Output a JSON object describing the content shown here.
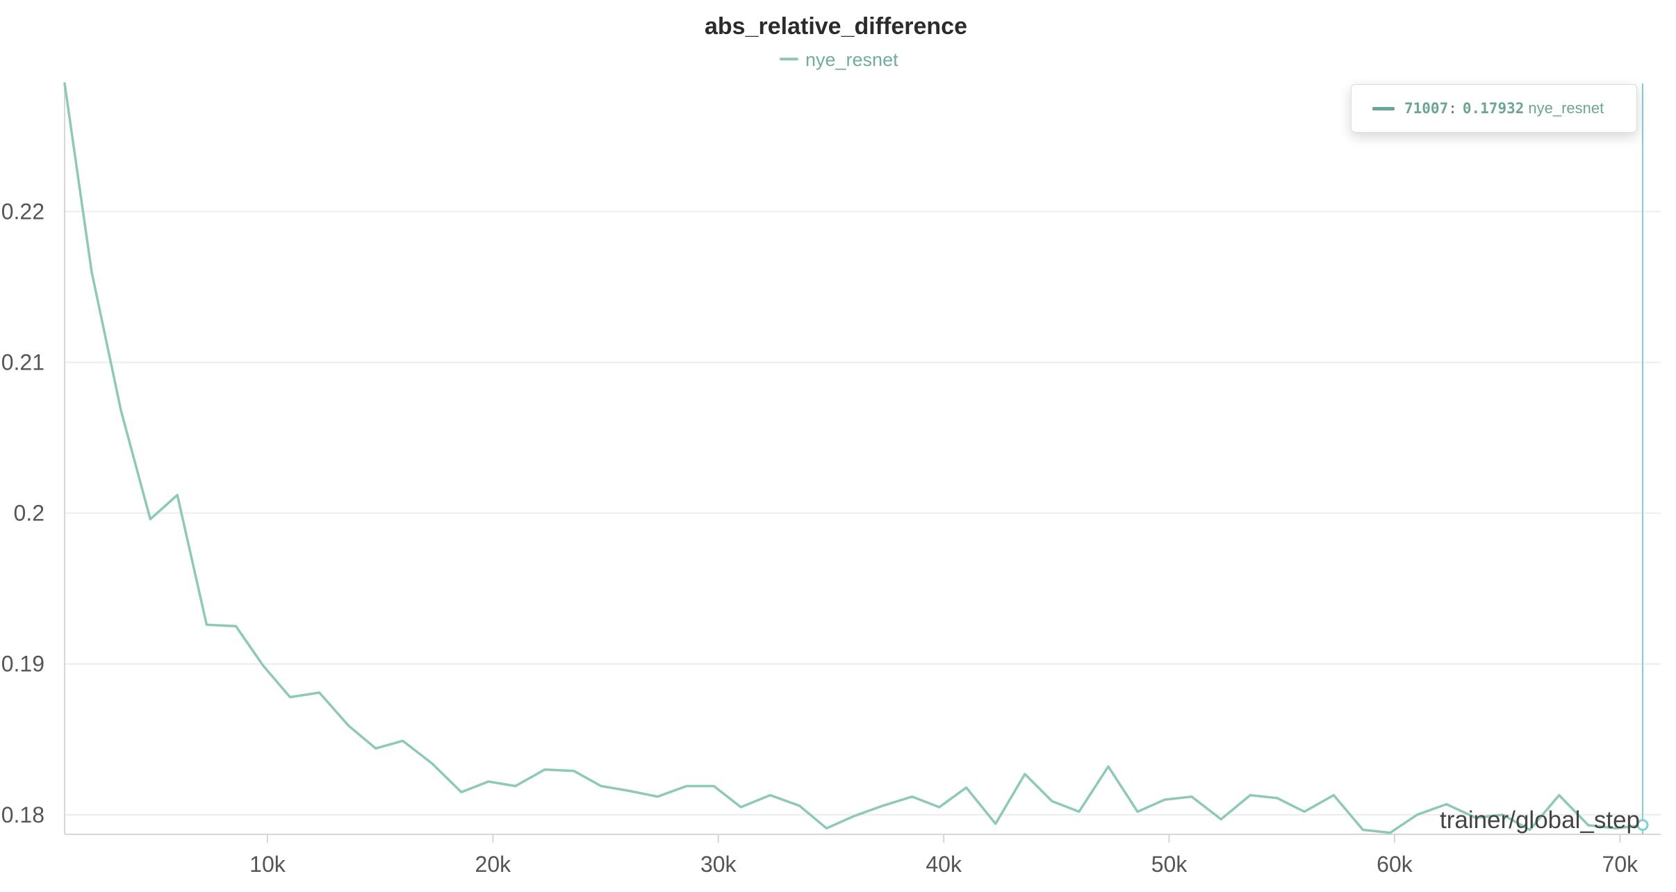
{
  "chart_data": {
    "type": "line",
    "title": "abs_relative_difference",
    "xlabel": "trainer/global_step",
    "ylabel": "",
    "xlim": [
      1000,
      71500
    ],
    "ylim": [
      0.1787,
      0.2285
    ],
    "xticks": [
      10000,
      20000,
      30000,
      40000,
      50000,
      60000,
      70000
    ],
    "xtick_labels": [
      "10k",
      "20k",
      "30k",
      "40k",
      "50k",
      "60k",
      "70k"
    ],
    "yticks": [
      0.18,
      0.19,
      0.2,
      0.21,
      0.22
    ],
    "ytick_labels": [
      "0.18",
      "0.19",
      "0.2",
      "0.21",
      "0.22"
    ],
    "grid": true,
    "legend": "top-center",
    "series": [
      {
        "name": "nye_resnet",
        "color": "#8ec8b8",
        "x": [
          1000,
          2200,
          3500,
          4800,
          6000,
          7300,
          8600,
          9800,
          11000,
          12300,
          13600,
          14800,
          16000,
          17300,
          18600,
          19800,
          21000,
          22300,
          23600,
          24800,
          26000,
          27300,
          28600,
          29800,
          31000,
          32300,
          33600,
          34800,
          36000,
          37300,
          38600,
          39800,
          41000,
          42300,
          43600,
          44800,
          46000,
          47300,
          48600,
          49800,
          51000,
          52300,
          53600,
          54800,
          56000,
          57300,
          58600,
          59800,
          61000,
          62300,
          63600,
          64800,
          66000,
          67300,
          68600,
          69800,
          71000
        ],
        "y": [
          0.2285,
          0.216,
          0.2068,
          0.1996,
          0.2012,
          0.1926,
          0.1925,
          0.1899,
          0.1878,
          0.1881,
          0.1859,
          0.1844,
          0.1849,
          0.1834,
          0.1815,
          0.1822,
          0.1819,
          0.183,
          0.1829,
          0.1819,
          0.1816,
          0.1812,
          0.1819,
          0.1819,
          0.1805,
          0.1813,
          0.1806,
          0.1791,
          0.1799,
          0.1806,
          0.1812,
          0.1805,
          0.1818,
          0.1794,
          0.1827,
          0.1809,
          0.1802,
          0.1832,
          0.1802,
          0.181,
          0.1812,
          0.1797,
          0.1813,
          0.1811,
          0.1802,
          0.1813,
          0.179,
          0.1788,
          0.18,
          0.1807,
          0.1798,
          0.18,
          0.179,
          0.1813,
          0.1793,
          0.1791,
          0.1793
        ]
      }
    ]
  },
  "tooltip": {
    "step": "71007",
    "separator": ":",
    "value": "0.17932",
    "series": "nye_resnet",
    "color": "#6aa595"
  },
  "colors": {
    "series": "#8ec8b8",
    "legend_text": "#6fae9e",
    "cursor": "#7fd0d3",
    "grid": "#ececec",
    "axis": "#d6d6d6"
  }
}
